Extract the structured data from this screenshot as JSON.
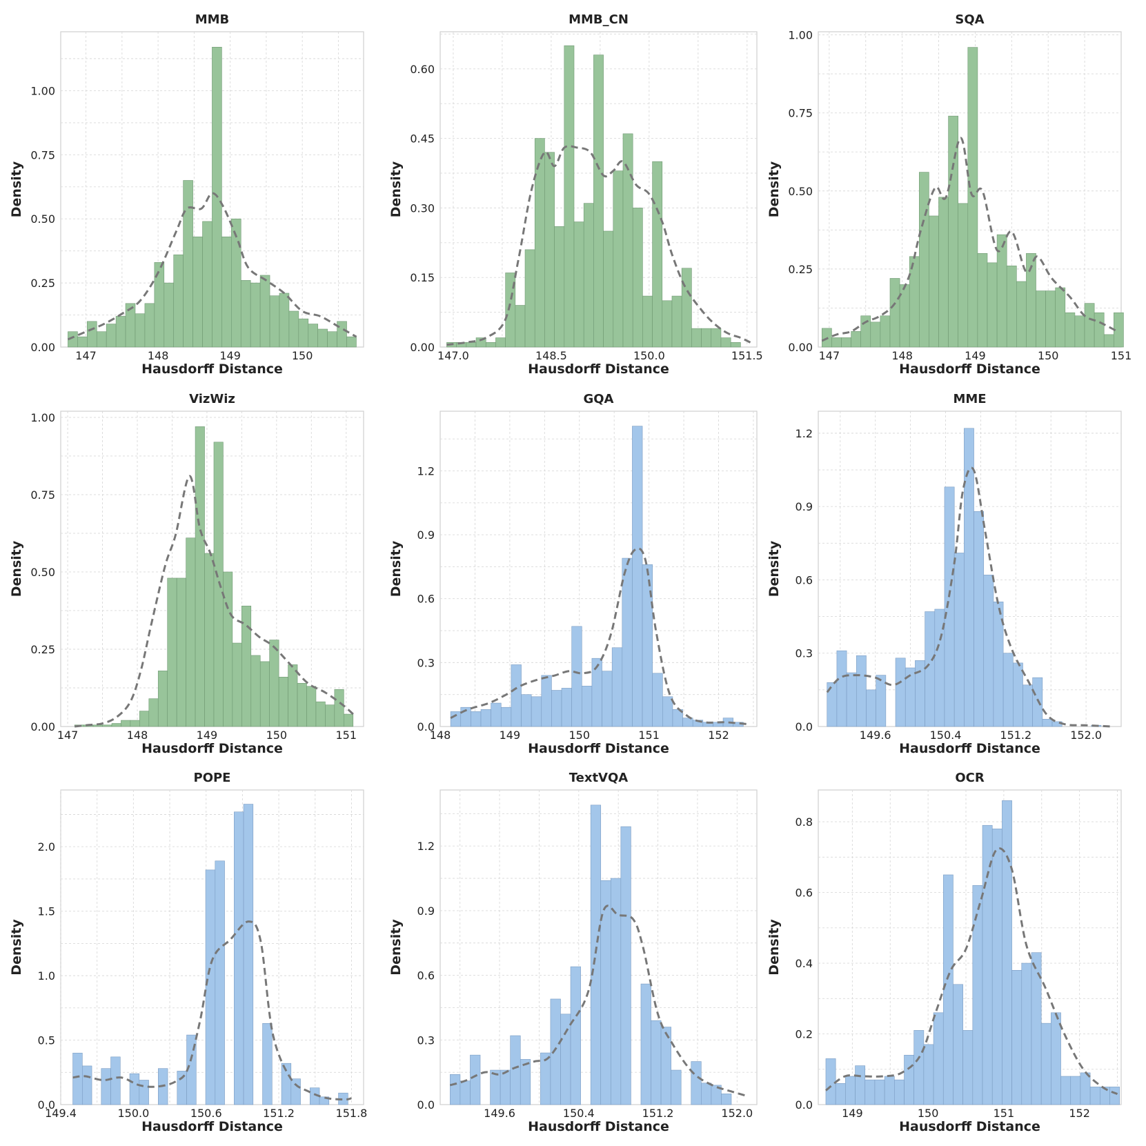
{
  "colors": {
    "green": "#98c49a",
    "green_edge": "#6f9872",
    "blue": "#a3c6ea",
    "blue_edge": "#7b9cc2",
    "kde": "#777777"
  },
  "chart_data": [
    {
      "type": "bar",
      "title": "MMB",
      "xlabel": "Hausdorff Distance",
      "ylabel": "Density",
      "color": "green",
      "xlim": [
        146.65,
        150.85
      ],
      "ylim": [
        0,
        1.23
      ],
      "xticks": [
        147,
        148,
        149,
        150
      ],
      "xticklabels": [
        "147",
        "148",
        "149",
        "150"
      ],
      "yticks": [
        0,
        0.25,
        0.5,
        0.75,
        1.0
      ],
      "yticklabels": [
        "0.00",
        "0.25",
        "0.50",
        "0.75",
        "1.00"
      ],
      "bin_start": 146.75,
      "bin_width": 0.1333,
      "values": [
        0.06,
        0.04,
        0.1,
        0.06,
        0.09,
        0.12,
        0.17,
        0.13,
        0.17,
        0.33,
        0.25,
        0.36,
        0.65,
        0.43,
        0.49,
        1.17,
        0.43,
        0.5,
        0.26,
        0.25,
        0.28,
        0.2,
        0.21,
        0.14,
        0.11,
        0.09,
        0.07,
        0.06,
        0.1,
        0.04
      ],
      "kde_x": [
        146.75,
        147.0,
        147.25,
        147.5,
        147.75,
        148.0,
        148.25,
        148.4,
        148.6,
        148.75,
        148.9,
        149.1,
        149.25,
        149.5,
        149.75,
        150.0,
        150.25,
        150.5,
        150.75
      ],
      "kde_y": [
        0.03,
        0.06,
        0.09,
        0.13,
        0.18,
        0.29,
        0.45,
        0.54,
        0.54,
        0.6,
        0.55,
        0.42,
        0.31,
        0.26,
        0.21,
        0.14,
        0.12,
        0.08,
        0.04
      ]
    },
    {
      "type": "bar",
      "title": "MMB_CN",
      "xlabel": "Hausdorff Distance",
      "ylabel": "Density",
      "color": "green",
      "xlim": [
        146.8,
        151.65
      ],
      "ylim": [
        0,
        0.68
      ],
      "xticks": [
        147.0,
        148.5,
        150.0,
        151.5
      ],
      "xticklabels": [
        "147.0",
        "148.5",
        "150.0",
        "151.5"
      ],
      "yticks": [
        0,
        0.15,
        0.3,
        0.45,
        0.6
      ],
      "yticklabels": [
        "0.00",
        "0.15",
        "0.30",
        "0.45",
        "0.60"
      ],
      "bin_start": 146.9,
      "bin_width": 0.15,
      "values": [
        0.01,
        0.01,
        0.01,
        0.02,
        0.01,
        0.02,
        0.16,
        0.09,
        0.21,
        0.45,
        0.42,
        0.26,
        0.65,
        0.27,
        0.31,
        0.63,
        0.25,
        0.38,
        0.46,
        0.3,
        0.11,
        0.4,
        0.1,
        0.11,
        0.17,
        0.04,
        0.04,
        0.04,
        0.02,
        0.01
      ],
      "kde_x": [
        146.9,
        147.2,
        147.5,
        147.8,
        148.0,
        148.2,
        148.4,
        148.55,
        148.7,
        148.9,
        149.1,
        149.3,
        149.45,
        149.6,
        149.8,
        150.0,
        150.2,
        150.35,
        150.55,
        150.8,
        151.0,
        151.2,
        151.4,
        151.55
      ],
      "kde_y": [
        0.005,
        0.01,
        0.02,
        0.06,
        0.19,
        0.34,
        0.42,
        0.39,
        0.43,
        0.43,
        0.42,
        0.37,
        0.38,
        0.4,
        0.35,
        0.33,
        0.27,
        0.2,
        0.13,
        0.08,
        0.05,
        0.03,
        0.02,
        0.01
      ]
    },
    {
      "type": "bar",
      "title": "SQA",
      "xlabel": "Hausdorff Distance",
      "ylabel": "Density",
      "color": "green",
      "xlim": [
        146.85,
        151.0
      ],
      "ylim": [
        0,
        1.01
      ],
      "xticks": [
        147,
        148,
        149,
        150,
        151
      ],
      "xticklabels": [
        "147",
        "148",
        "149",
        "150",
        "151"
      ],
      "yticks": [
        0,
        0.25,
        0.5,
        0.75,
        1.0
      ],
      "yticklabels": [
        "0.00",
        "0.25",
        "0.50",
        "0.75",
        "1.00"
      ],
      "bin_start": 146.9,
      "bin_width": 0.1333,
      "values": [
        0.06,
        0.03,
        0.03,
        0.05,
        0.1,
        0.08,
        0.1,
        0.22,
        0.2,
        0.29,
        0.56,
        0.42,
        0.48,
        0.74,
        0.46,
        0.96,
        0.3,
        0.27,
        0.36,
        0.26,
        0.21,
        0.3,
        0.18,
        0.18,
        0.19,
        0.11,
        0.1,
        0.14,
        0.11,
        0.04,
        0.11
      ],
      "kde_x": [
        146.9,
        147.1,
        147.3,
        147.5,
        147.7,
        147.9,
        148.1,
        148.25,
        148.45,
        148.6,
        148.8,
        148.95,
        149.1,
        149.3,
        149.5,
        149.7,
        149.85,
        150.05,
        150.3,
        150.5,
        150.7,
        150.95
      ],
      "kde_y": [
        0.02,
        0.04,
        0.05,
        0.08,
        0.1,
        0.14,
        0.23,
        0.37,
        0.51,
        0.48,
        0.67,
        0.49,
        0.5,
        0.31,
        0.37,
        0.24,
        0.29,
        0.22,
        0.16,
        0.1,
        0.08,
        0.05
      ]
    },
    {
      "type": "bar",
      "title": "VizWiz",
      "xlabel": "Hausdorff Distance",
      "ylabel": "Density",
      "color": "green",
      "xlim": [
        146.9,
        151.25
      ],
      "ylim": [
        0,
        1.02
      ],
      "xticks": [
        147,
        148,
        149,
        150,
        151
      ],
      "xticklabels": [
        "147",
        "148",
        "149",
        "150",
        "151"
      ],
      "yticks": [
        0,
        0.25,
        0.5,
        0.75,
        1.0
      ],
      "yticklabels": [
        "0.00",
        "0.25",
        "0.50",
        "0.75",
        "1.00"
      ],
      "bin_start": 147.1,
      "bin_width": 0.1333,
      "values": [
        0.005,
        0.005,
        0.005,
        0.005,
        0.01,
        0.02,
        0.02,
        0.05,
        0.09,
        0.18,
        0.48,
        0.48,
        0.61,
        0.97,
        0.56,
        0.92,
        0.5,
        0.27,
        0.39,
        0.23,
        0.21,
        0.28,
        0.16,
        0.2,
        0.14,
        0.13,
        0.08,
        0.07,
        0.12,
        0.04
      ],
      "kde_x": [
        147.1,
        147.3,
        147.5,
        147.7,
        147.9,
        148.05,
        148.2,
        148.4,
        148.55,
        148.75,
        148.9,
        149.05,
        149.2,
        149.35,
        149.55,
        149.75,
        149.95,
        150.2,
        150.45,
        150.7,
        150.95,
        151.1
      ],
      "kde_y": [
        0.0,
        0.005,
        0.01,
        0.03,
        0.08,
        0.18,
        0.33,
        0.52,
        0.62,
        0.81,
        0.64,
        0.56,
        0.45,
        0.36,
        0.33,
        0.29,
        0.26,
        0.2,
        0.14,
        0.11,
        0.07,
        0.04
      ]
    },
    {
      "type": "bar",
      "title": "GQA",
      "xlabel": "Hausdorff Distance",
      "ylabel": "Density",
      "color": "blue",
      "xlim": [
        148.0,
        152.55
      ],
      "ylim": [
        0,
        1.48
      ],
      "xticks": [
        148,
        149,
        150,
        151,
        152
      ],
      "xticklabels": [
        "148",
        "149",
        "150",
        "151",
        "152"
      ],
      "yticks": [
        0,
        0.3,
        0.6,
        0.9,
        1.2
      ],
      "yticklabels": [
        "0.0",
        "0.3",
        "0.6",
        "0.9",
        "1.2"
      ],
      "bin_start": 148.15,
      "bin_width": 0.145,
      "values": [
        0.07,
        0.09,
        0.07,
        0.08,
        0.11,
        0.09,
        0.29,
        0.15,
        0.14,
        0.24,
        0.17,
        0.18,
        0.47,
        0.19,
        0.32,
        0.26,
        0.37,
        0.79,
        1.41,
        0.76,
        0.25,
        0.14,
        0.08,
        0.04,
        0.03,
        0.02,
        0.02,
        0.04,
        0.02
      ],
      "kde_x": [
        148.15,
        148.4,
        148.7,
        148.95,
        149.15,
        149.4,
        149.65,
        149.85,
        150.05,
        150.25,
        150.45,
        150.65,
        150.8,
        150.95,
        151.1,
        151.3,
        151.55,
        151.8,
        152.1,
        152.45
      ],
      "kde_y": [
        0.04,
        0.08,
        0.11,
        0.15,
        0.19,
        0.22,
        0.24,
        0.26,
        0.25,
        0.28,
        0.43,
        0.72,
        0.83,
        0.78,
        0.45,
        0.15,
        0.05,
        0.02,
        0.02,
        0.01
      ]
    },
    {
      "type": "bar",
      "title": "MME",
      "xlabel": "Hausdorff Distance",
      "ylabel": "Density",
      "color": "blue",
      "xlim": [
        148.95,
        152.4
      ],
      "ylim": [
        0,
        1.29
      ],
      "xticks": [
        149.6,
        150.4,
        151.2,
        152.0
      ],
      "xticklabels": [
        "149.6",
        "150.4",
        "151.2",
        "152.0"
      ],
      "yticks": [
        0,
        0.3,
        0.6,
        0.9,
        1.2
      ],
      "yticklabels": [
        "0.0",
        "0.3",
        "0.6",
        "0.9",
        "1.2"
      ],
      "bin_start": 149.05,
      "bin_width": 0.1115,
      "values": [
        0.18,
        0.31,
        0.22,
        0.29,
        0.15,
        0.21,
        0.0,
        0.28,
        0.24,
        0.27,
        0.47,
        0.48,
        0.98,
        0.71,
        1.22,
        0.88,
        0.62,
        0.51,
        0.3,
        0.26,
        0.17,
        0.2,
        0.03,
        0.02,
        0.0,
        0.0,
        0.0,
        0.005,
        0.0,
        0.0
      ],
      "kde_x": [
        149.05,
        149.2,
        149.4,
        149.6,
        149.8,
        150.0,
        150.2,
        150.35,
        150.5,
        150.6,
        150.72,
        150.85,
        151.0,
        151.15,
        151.35,
        151.55,
        151.75,
        152.0,
        152.3
      ],
      "kde_y": [
        0.14,
        0.2,
        0.21,
        0.2,
        0.17,
        0.21,
        0.25,
        0.37,
        0.67,
        0.97,
        1.05,
        0.8,
        0.5,
        0.32,
        0.18,
        0.05,
        0.01,
        0.005,
        0.0
      ]
    },
    {
      "type": "bar",
      "title": "POPE",
      "xlabel": "Hausdorff Distance",
      "ylabel": "Density",
      "color": "blue",
      "xlim": [
        149.4,
        151.9
      ],
      "ylim": [
        0,
        2.44
      ],
      "xticks": [
        149.4,
        150.0,
        150.6,
        151.2,
        151.8
      ],
      "xticklabels": [
        "149.4",
        "150.0",
        "150.6",
        "151.2",
        "151.8"
      ],
      "yticks": [
        0,
        0.5,
        1.0,
        1.5,
        2.0
      ],
      "yticklabels": [
        "0.0",
        "0.5",
        "1.0",
        "1.5",
        "2.0"
      ],
      "bin_start": 149.5,
      "bin_width": 0.0783,
      "values": [
        0.4,
        0.3,
        0.0,
        0.28,
        0.37,
        0.0,
        0.24,
        0.19,
        0.0,
        0.28,
        0.0,
        0.26,
        0.54,
        0.0,
        1.82,
        1.89,
        0.0,
        2.27,
        2.33,
        0.0,
        0.63,
        0.0,
        0.32,
        0.2,
        0.0,
        0.13,
        0.06,
        0.0,
        0.09
      ],
      "kde_x": [
        149.5,
        149.6,
        149.75,
        149.9,
        150.05,
        150.2,
        150.35,
        150.45,
        150.55,
        150.65,
        150.8,
        150.95,
        151.05,
        151.15,
        151.3,
        151.45,
        151.6,
        151.75,
        151.8
      ],
      "kde_y": [
        0.21,
        0.22,
        0.19,
        0.21,
        0.15,
        0.14,
        0.18,
        0.28,
        0.65,
        1.12,
        1.28,
        1.42,
        1.27,
        0.55,
        0.2,
        0.1,
        0.05,
        0.04,
        0.05
      ]
    },
    {
      "type": "bar",
      "title": "TextVQA",
      "xlabel": "Hausdorff Distance",
      "ylabel": "Density",
      "color": "blue",
      "xlim": [
        149.0,
        152.2
      ],
      "ylim": [
        0,
        1.46
      ],
      "xticks": [
        149.6,
        150.4,
        151.2,
        152.0
      ],
      "xticklabels": [
        "149.6",
        "150.4",
        "151.2",
        "152.0"
      ],
      "yticks": [
        0,
        0.3,
        0.6,
        0.9,
        1.2
      ],
      "yticklabels": [
        "0.0",
        "0.3",
        "0.6",
        "0.9",
        "1.2"
      ],
      "bin_start": 149.1,
      "bin_width": 0.1015,
      "values": [
        0.14,
        0.11,
        0.23,
        0.0,
        0.16,
        0.16,
        0.32,
        0.21,
        0.0,
        0.24,
        0.49,
        0.42,
        0.64,
        0.0,
        1.39,
        1.04,
        1.05,
        1.29,
        0.0,
        0.56,
        0.39,
        0.36,
        0.16,
        0.0,
        0.2,
        0.1,
        0.09,
        0.05
      ],
      "kde_x": [
        149.1,
        149.25,
        149.45,
        149.6,
        149.75,
        149.95,
        150.1,
        150.3,
        150.5,
        150.65,
        150.8,
        150.95,
        151.05,
        151.2,
        151.35,
        151.55,
        151.75,
        151.95,
        152.1
      ],
      "kde_y": [
        0.09,
        0.11,
        0.15,
        0.14,
        0.17,
        0.2,
        0.22,
        0.36,
        0.53,
        0.9,
        0.88,
        0.86,
        0.73,
        0.42,
        0.28,
        0.15,
        0.09,
        0.06,
        0.04
      ]
    },
    {
      "type": "bar",
      "title": "OCR",
      "xlabel": "Hausdorff Distance",
      "ylabel": "Density",
      "color": "blue",
      "xlim": [
        148.55,
        152.55
      ],
      "ylim": [
        0,
        0.89
      ],
      "xticks": [
        149,
        150,
        151,
        152
      ],
      "xticklabels": [
        "149",
        "150",
        "151",
        "152"
      ],
      "yticks": [
        0,
        0.2,
        0.4,
        0.6,
        0.8
      ],
      "yticklabels": [
        "0.0",
        "0.2",
        "0.4",
        "0.6",
        "0.8"
      ],
      "bin_start": 148.65,
      "bin_width": 0.1293,
      "values": [
        0.13,
        0.06,
        0.08,
        0.11,
        0.07,
        0.07,
        0.08,
        0.07,
        0.14,
        0.21,
        0.17,
        0.26,
        0.65,
        0.34,
        0.21,
        0.62,
        0.79,
        0.78,
        0.86,
        0.38,
        0.4,
        0.43,
        0.23,
        0.26,
        0.08,
        0.08,
        0.09,
        0.05,
        0.05,
        0.05
      ],
      "kde_x": [
        148.65,
        148.9,
        149.15,
        149.4,
        149.65,
        149.9,
        150.1,
        150.3,
        150.5,
        150.7,
        150.9,
        151.1,
        151.3,
        151.55,
        151.8,
        152.05,
        152.3,
        152.5
      ],
      "kde_y": [
        0.04,
        0.08,
        0.08,
        0.08,
        0.09,
        0.14,
        0.26,
        0.38,
        0.44,
        0.58,
        0.72,
        0.67,
        0.45,
        0.33,
        0.2,
        0.1,
        0.05,
        0.03
      ]
    }
  ]
}
